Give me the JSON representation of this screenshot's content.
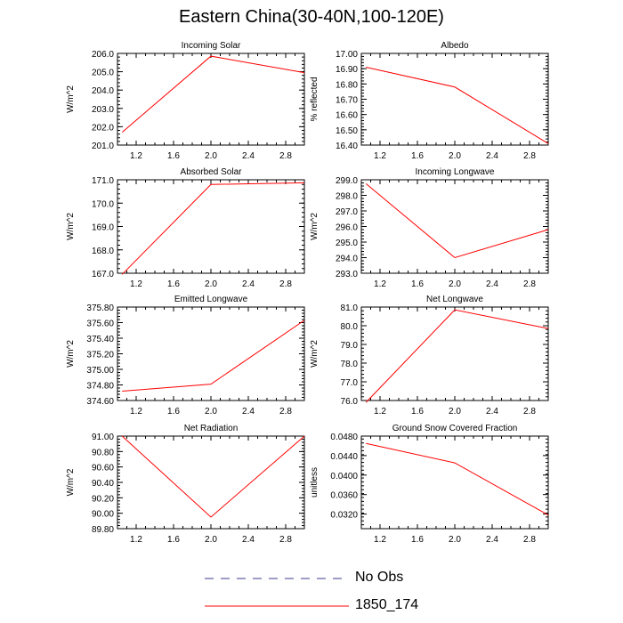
{
  "title": "Eastern China(30-40N,100-120E)",
  "colors": {
    "model_line": "#ff0000",
    "obs_line": "#3a3a8a",
    "axis": "#000000"
  },
  "legend": [
    {
      "label": "No Obs",
      "style": "dashed",
      "color": "#3a3a8a"
    },
    {
      "label": "1850_174",
      "style": "solid",
      "color": "#ff0000"
    }
  ],
  "chart_data": [
    {
      "type": "line",
      "title": "Incoming Solar",
      "ylabel": "W/m^2",
      "xlim": [
        1,
        3
      ],
      "ylim": [
        201,
        206
      ],
      "xticks": [
        "1.2",
        "1.6",
        "2.0",
        "2.4",
        "2.8"
      ],
      "yticks": [
        "201.0",
        "202.0",
        "203.0",
        "204.0",
        "205.0",
        "206.0"
      ],
      "series": [
        {
          "name": "1850_174",
          "x": [
            1.05,
            2.0,
            3.0
          ],
          "y": [
            201.7,
            205.85,
            204.95
          ]
        }
      ]
    },
    {
      "type": "line",
      "title": "Albedo",
      "ylabel": "% reflected",
      "xlim": [
        1,
        3
      ],
      "ylim": [
        16.4,
        17.0
      ],
      "xticks": [
        "1.2",
        "1.6",
        "2.0",
        "2.4",
        "2.8"
      ],
      "yticks": [
        "16.40",
        "16.50",
        "16.60",
        "16.70",
        "16.80",
        "16.90",
        "17.00"
      ],
      "series": [
        {
          "name": "1850_174",
          "x": [
            1.05,
            2.0,
            3.0
          ],
          "y": [
            16.91,
            16.78,
            16.41
          ]
        }
      ]
    },
    {
      "type": "line",
      "title": "Absorbed Solar",
      "ylabel": "W/m^2",
      "xlim": [
        1,
        3
      ],
      "ylim": [
        167,
        171
      ],
      "xticks": [
        "1.2",
        "1.6",
        "2.0",
        "2.4",
        "2.8"
      ],
      "yticks": [
        "167.0",
        "168.0",
        "169.0",
        "170.0",
        "171.0"
      ],
      "series": [
        {
          "name": "1850_174",
          "x": [
            1.05,
            2.0,
            3.0
          ],
          "y": [
            166.95,
            170.8,
            170.87
          ]
        }
      ]
    },
    {
      "type": "line",
      "title": "Incoming Longwave",
      "ylabel": "W/m^2",
      "xlim": [
        1,
        3
      ],
      "ylim": [
        293,
        299
      ],
      "xticks": [
        "1.2",
        "1.6",
        "2.0",
        "2.4",
        "2.8"
      ],
      "yticks": [
        "293.0",
        "294.0",
        "295.0",
        "296.0",
        "297.0",
        "298.0",
        "299.0"
      ],
      "series": [
        {
          "name": "1850_174",
          "x": [
            1.05,
            2.0,
            3.0
          ],
          "y": [
            298.75,
            294.0,
            295.8
          ]
        }
      ]
    },
    {
      "type": "line",
      "title": "Emitted Longwave",
      "ylabel": "W/m^2",
      "xlim": [
        1,
        3
      ],
      "ylim": [
        374.6,
        375.8
      ],
      "xticks": [
        "1.2",
        "1.6",
        "2.0",
        "2.4",
        "2.8"
      ],
      "yticks": [
        "374.60",
        "374.80",
        "375.00",
        "375.20",
        "375.40",
        "375.60",
        "375.80"
      ],
      "series": [
        {
          "name": "1850_174",
          "x": [
            1.05,
            2.0,
            3.0
          ],
          "y": [
            374.72,
            374.81,
            375.63
          ]
        }
      ]
    },
    {
      "type": "line",
      "title": "Net Longwave",
      "ylabel": "W/m^2",
      "xlim": [
        1,
        3
      ],
      "ylim": [
        76,
        81
      ],
      "xticks": [
        "1.2",
        "1.6",
        "2.0",
        "2.4",
        "2.8"
      ],
      "yticks": [
        "76.0",
        "77.0",
        "78.0",
        "79.0",
        "80.0",
        "81.0"
      ],
      "series": [
        {
          "name": "1850_174",
          "x": [
            1.05,
            2.0,
            3.0
          ],
          "y": [
            75.9,
            80.85,
            79.85
          ]
        }
      ]
    },
    {
      "type": "line",
      "title": "Net Radiation",
      "ylabel": "W/m^2",
      "xlim": [
        1,
        3
      ],
      "ylim": [
        89.8,
        91.0
      ],
      "xticks": [
        "1.2",
        "1.6",
        "2.0",
        "2.4",
        "2.8"
      ],
      "yticks": [
        "89.80",
        "90.00",
        "90.20",
        "90.40",
        "90.60",
        "90.80",
        "91.00"
      ],
      "series": [
        {
          "name": "1850_174",
          "x": [
            1.05,
            2.0,
            3.0
          ],
          "y": [
            91.0,
            89.95,
            91.0
          ]
        }
      ]
    },
    {
      "type": "line",
      "title": "Ground Snow Covered Fraction",
      "ylabel": "unitless",
      "xlim": [
        1,
        3
      ],
      "ylim": [
        0.029,
        0.048
      ],
      "xticks": [
        "1.2",
        "1.6",
        "2.0",
        "2.4",
        "2.8"
      ],
      "yticks": [
        "0.0320",
        "0.0360",
        "0.0400",
        "0.0440",
        "0.0480"
      ],
      "ytick_values": [
        0.032,
        0.036,
        0.04,
        0.044,
        0.048
      ],
      "series": [
        {
          "name": "1850_174",
          "x": [
            1.05,
            2.0,
            3.0
          ],
          "y": [
            0.0465,
            0.0425,
            0.0318
          ]
        }
      ]
    }
  ]
}
